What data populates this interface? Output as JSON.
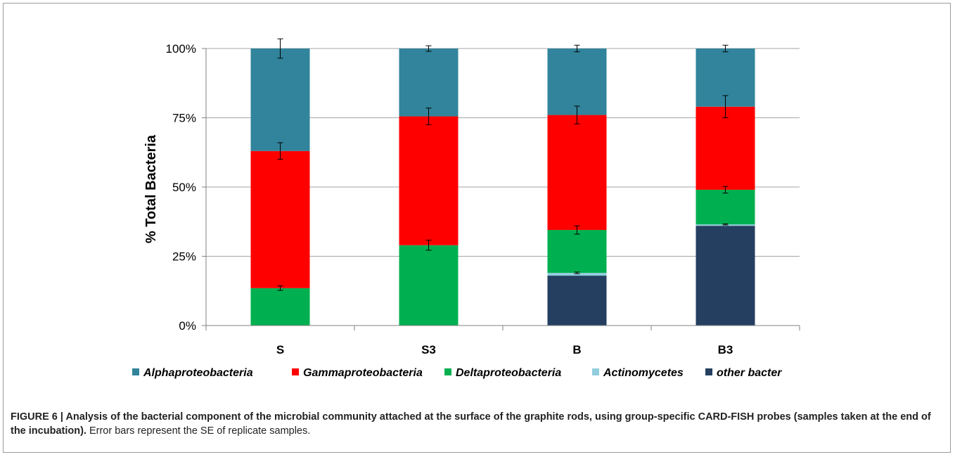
{
  "chart_data": {
    "type": "bar",
    "stacked": true,
    "categories": [
      "S",
      "S3",
      "B",
      "B3"
    ],
    "ylabel": "% Total Bacteria",
    "yticks": [
      "0%",
      "25%",
      "50%",
      "75%",
      "100%"
    ],
    "ylim": [
      0,
      100
    ],
    "grid": true,
    "legend_position": "bottom",
    "series": [
      {
        "name": "other bacter",
        "color": "#243f60",
        "values": [
          0,
          0,
          18,
          36
        ],
        "errors": [
          0,
          0,
          0,
          0
        ]
      },
      {
        "name": "Actinomycetes",
        "color": "#92cddc",
        "values": [
          0,
          0,
          1,
          0.5
        ],
        "errors": [
          0,
          0,
          0.3,
          0.2
        ]
      },
      {
        "name": "Deltaproteobacteria",
        "color": "#00b050",
        "values": [
          13.5,
          29,
          15.5,
          12.5
        ],
        "errors": [
          0.8,
          1.8,
          1.5,
          1.2
        ]
      },
      {
        "name": "Gammaproteobacteria",
        "color": "#ff0000",
        "values": [
          49.5,
          46.5,
          41.5,
          30
        ],
        "errors": [
          3,
          3,
          3.2,
          4
        ]
      },
      {
        "name": "Alphaproteobacteria",
        "color": "#31849b",
        "values": [
          37,
          24.5,
          24,
          21
        ],
        "errors": [
          3.5,
          1,
          1.2,
          1.2
        ]
      }
    ],
    "legend_order": [
      "Alphaproteobacteria",
      "Gammaproteobacteria",
      "Deltaproteobacteria",
      "Actinomycetes",
      "other bacter"
    ]
  },
  "caption": {
    "bold": "FIGURE 6 | Analysis of the bacterial component of the microbial community attached at the surface of the graphite rods, using group-specific CARD-FISH probes (samples taken at the end of the incubation).",
    "normal": " Error bars represent the SE of replicate samples."
  }
}
